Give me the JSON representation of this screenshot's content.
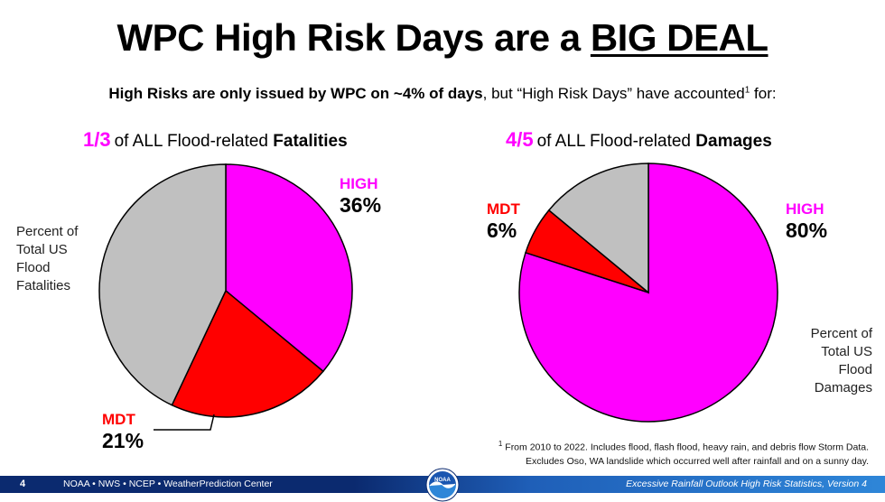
{
  "title": {
    "main": "WPC High Risk Days are a ",
    "emph": "BIG DEAL"
  },
  "subtitle": {
    "bold": "High Risks are only issued by WPC on ~4% of days",
    "rest": ", but “High Risk Days” have accounted",
    "sup": "1",
    "end": " for:"
  },
  "left_header": {
    "fraction": "1/3",
    "text": "of ALL Flood-related ",
    "bold": "Fatalities"
  },
  "right_header": {
    "fraction": "4/5",
    "text": "of ALL Flood-related ",
    "bold": "Damages"
  },
  "colors": {
    "high": "#ff00ff",
    "mdt": "#ff0000",
    "other": "#c0c0c0"
  },
  "chart_data": [
    {
      "type": "pie",
      "title": "1/3 of ALL Flood-related Fatalities",
      "description": "Percent of Total US Flood Fatalities",
      "slices": [
        {
          "label": "HIGH",
          "value": 36,
          "display": "36%",
          "color": "#ff00ff"
        },
        {
          "label": "MDT",
          "value": 21,
          "display": "21%",
          "color": "#ff0000"
        },
        {
          "label": "",
          "value": 43,
          "display": "",
          "color": "#c0c0c0"
        }
      ]
    },
    {
      "type": "pie",
      "title": "4/5 of ALL Flood-related Damages",
      "description": "Percent of Total US Flood Damages",
      "slices": [
        {
          "label": "HIGH",
          "value": 80,
          "display": "80%",
          "color": "#ff00ff"
        },
        {
          "label": "MDT",
          "value": 6,
          "display": "6%",
          "color": "#ff0000"
        },
        {
          "label": "",
          "value": 14,
          "display": "",
          "color": "#c0c0c0"
        }
      ]
    }
  ],
  "left_desc": [
    "Percent of",
    "Total US",
    "Flood",
    "Fatalities"
  ],
  "right_desc": [
    "Percent of",
    "Total US",
    "Flood",
    "Damages"
  ],
  "footnote": {
    "sup": "1",
    "line1": " From 2010 to 2022. Includes flood, flash flood, heavy rain, and debris flow Storm Data.",
    "line2": "Excludes Oso, WA landslide which occurred well after rainfall and on a sunny day."
  },
  "footer": {
    "page": "4",
    "org": "NOAA  •  NWS  •  NCEP  •  WeatherPrediction Center",
    "version": "Excessive Rainfall Outlook High Risk Statistics, Version 4"
  },
  "logo": {
    "text": "NOAA"
  }
}
